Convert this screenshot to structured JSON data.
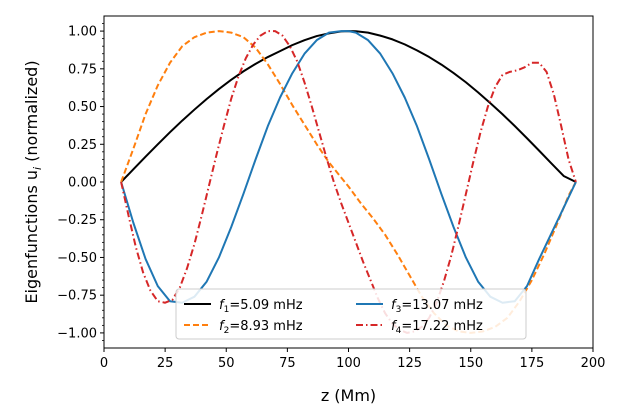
{
  "chart_data": {
    "type": "line",
    "title": "",
    "xlabel": "z (Mm)",
    "ylabel_main": "Eigenfunctions u",
    "ylabel_sub": "i",
    "ylabel_suffix": " (normalized)",
    "xlim": [
      0,
      200
    ],
    "ylim": [
      -1.1,
      1.1
    ],
    "xticks": [
      0,
      25,
      50,
      75,
      100,
      125,
      150,
      175,
      200
    ],
    "xtick_labels": [
      "0",
      "25",
      "50",
      "75",
      "100",
      "125",
      "150",
      "175",
      "200"
    ],
    "yticks": [
      -1.0,
      -0.75,
      -0.5,
      -0.25,
      0.0,
      0.25,
      0.5,
      0.75,
      1.0
    ],
    "ytick_labels": [
      "−1.00",
      "−0.75",
      "−0.50",
      "−0.25",
      "0.00",
      "0.25",
      "0.50",
      "0.75",
      "1.00"
    ],
    "grid": false,
    "legend_position": "bottom-center",
    "series": [
      {
        "name": "f1=5.09 mHz",
        "legend_prefix": "f",
        "legend_sub": "1",
        "legend_suffix": "=5.09 mHz",
        "color": "#000000",
        "style": "solid",
        "x": [
          7,
          12,
          17,
          22,
          27,
          32,
          37,
          42,
          47,
          52,
          57,
          62,
          67,
          72,
          77,
          82,
          87,
          92,
          97,
          100,
          103,
          108,
          113,
          118,
          123,
          128,
          133,
          138,
          143,
          148,
          153,
          158,
          163,
          168,
          173,
          178,
          183,
          188,
          193
        ],
        "y": [
          0.0,
          0.084,
          0.168,
          0.25,
          0.33,
          0.407,
          0.48,
          0.55,
          0.616,
          0.677,
          0.733,
          0.783,
          0.828,
          0.867,
          0.907,
          0.94,
          0.967,
          0.985,
          0.998,
          1.0,
          0.999,
          0.99,
          0.97,
          0.945,
          0.912,
          0.872,
          0.828,
          0.778,
          0.722,
          0.661,
          0.594,
          0.523,
          0.449,
          0.371,
          0.29,
          0.207,
          0.123,
          0.04,
          0.0
        ]
      },
      {
        "name": "f2=8.93 mHz",
        "legend_prefix": "f",
        "legend_sub": "2",
        "legend_suffix": "=8.93 mHz",
        "color": "#ff7f0e",
        "style": "dashed",
        "x": [
          7,
          12,
          17,
          22,
          27,
          32,
          37,
          42,
          47,
          52,
          57,
          62,
          67,
          72,
          77,
          82,
          87,
          92,
          97,
          100,
          105,
          110,
          115,
          120,
          125,
          130,
          135,
          140,
          145,
          150,
          155,
          160,
          165,
          170,
          175,
          180,
          185,
          190,
          193
        ],
        "y": [
          0.0,
          0.22,
          0.45,
          0.64,
          0.79,
          0.9,
          0.96,
          0.99,
          1.0,
          0.99,
          0.96,
          0.89,
          0.78,
          0.65,
          0.51,
          0.38,
          0.25,
          0.13,
          0.03,
          -0.03,
          -0.14,
          -0.24,
          -0.35,
          -0.48,
          -0.62,
          -0.76,
          -0.87,
          -0.95,
          -0.99,
          -1.0,
          -0.99,
          -0.96,
          -0.9,
          -0.79,
          -0.65,
          -0.48,
          -0.29,
          -0.09,
          0.0
        ]
      },
      {
        "name": "f3=13.07 mHz",
        "legend_prefix": "f",
        "legend_sub": "3",
        "legend_suffix": "=13.07 mHz",
        "color": "#1f77b4",
        "style": "solid",
        "x": [
          7,
          12,
          17,
          22,
          27,
          32,
          37,
          42,
          47,
          52,
          57,
          62,
          67,
          72,
          77,
          82,
          87,
          92,
          97,
          100,
          103,
          108,
          113,
          118,
          123,
          128,
          133,
          138,
          143,
          148,
          153,
          158,
          163,
          168,
          173,
          178,
          183,
          188,
          193
        ],
        "y": [
          0.0,
          -0.27,
          -0.51,
          -0.69,
          -0.79,
          -0.8,
          -0.76,
          -0.66,
          -0.5,
          -0.3,
          -0.08,
          0.15,
          0.37,
          0.56,
          0.72,
          0.85,
          0.94,
          0.99,
          1.0,
          1.0,
          0.99,
          0.94,
          0.85,
          0.72,
          0.56,
          0.37,
          0.15,
          -0.08,
          -0.3,
          -0.5,
          -0.66,
          -0.76,
          -0.8,
          -0.79,
          -0.69,
          -0.51,
          -0.34,
          -0.17,
          0.0
        ]
      },
      {
        "name": "f4=17.22 mHz",
        "legend_prefix": "f",
        "legend_sub": "4",
        "legend_suffix": "=17.22 mHz",
        "color": "#d62728",
        "style": "dashdot",
        "x": [
          7,
          10,
          13,
          16,
          19,
          22,
          25,
          28,
          31,
          34,
          37,
          40,
          43,
          46,
          49,
          52,
          55,
          58,
          61,
          64,
          67,
          70,
          73,
          76,
          79,
          82,
          85,
          88,
          91,
          94,
          97,
          100,
          103,
          106,
          109,
          112,
          115,
          118,
          121,
          124,
          127,
          130,
          133,
          136,
          139,
          142,
          145,
          148,
          151,
          154,
          157,
          160,
          163,
          166,
          169,
          172,
          175,
          178,
          181,
          184,
          187,
          190,
          193
        ],
        "y": [
          0.0,
          -0.22,
          -0.43,
          -0.6,
          -0.72,
          -0.79,
          -0.8,
          -0.78,
          -0.7,
          -0.57,
          -0.41,
          -0.22,
          -0.02,
          0.18,
          0.37,
          0.55,
          0.7,
          0.82,
          0.91,
          0.97,
          1.0,
          1.0,
          0.97,
          0.9,
          0.8,
          0.66,
          0.5,
          0.33,
          0.16,
          0.0,
          -0.14,
          -0.27,
          -0.4,
          -0.53,
          -0.65,
          -0.77,
          -0.87,
          -0.94,
          -0.98,
          -1.0,
          -0.99,
          -0.96,
          -0.9,
          -0.8,
          -0.66,
          -0.49,
          -0.29,
          -0.08,
          0.13,
          0.33,
          0.5,
          0.63,
          0.71,
          0.73,
          0.74,
          0.76,
          0.79,
          0.79,
          0.73,
          0.58,
          0.37,
          0.15,
          0.0
        ]
      }
    ]
  }
}
